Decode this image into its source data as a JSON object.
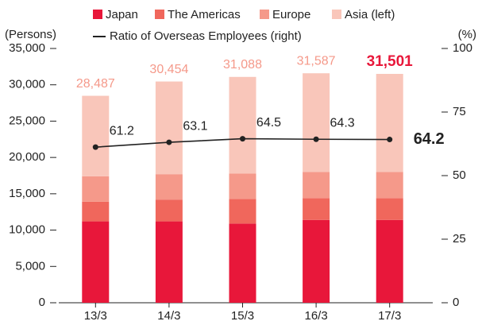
{
  "chart_data": {
    "type": "bar",
    "stacked": true,
    "ylabel": "(Persons)",
    "y2label": "(%)",
    "categories": [
      "13/3",
      "14/3",
      "15/3",
      "16/3",
      "17/3"
    ],
    "series": [
      {
        "name": "Japan",
        "color": "#e8173a",
        "values": [
          11200,
          11200,
          10900,
          11400,
          11400
        ]
      },
      {
        "name": "The Americas",
        "color": "#f0675c",
        "values": [
          2700,
          3000,
          3400,
          3000,
          3000
        ]
      },
      {
        "name": "Europe",
        "color": "#f5998a",
        "values": [
          3500,
          3500,
          3500,
          3600,
          3600
        ]
      },
      {
        "name": "Asia (left)",
        "color": "#f9c6ba",
        "values": [
          11087,
          12754,
          13288,
          13587,
          13501
        ]
      },
      {
        "name": "Ratio of Overseas Employees (right)",
        "type": "line",
        "axis": "y2",
        "color": "#222222",
        "values": [
          61.2,
          63.1,
          64.5,
          64.3,
          64.2
        ]
      }
    ],
    "totals": [
      28487,
      30454,
      31088,
      31587,
      31501
    ],
    "total_labels": [
      "28,487",
      "30,454",
      "31,088",
      "31,587",
      "31,501"
    ],
    "ylim": [
      0,
      35000
    ],
    "yticks": [
      0,
      {
        "value": 5000,
        "label": "5,000"
      },
      {
        "value": 10000,
        "label": "10,000"
      },
      {
        "value": 15000,
        "label": "15,000"
      },
      {
        "value": 20000,
        "label": "20,000"
      },
      {
        "value": 25000,
        "label": "25,000"
      },
      {
        "value": 30000,
        "label": "30,000"
      },
      {
        "value": 35000,
        "label": "35,000"
      }
    ],
    "y2lim": [
      0,
      100
    ],
    "y2ticks": [
      0,
      25,
      50,
      75,
      100
    ],
    "grid": false
  }
}
